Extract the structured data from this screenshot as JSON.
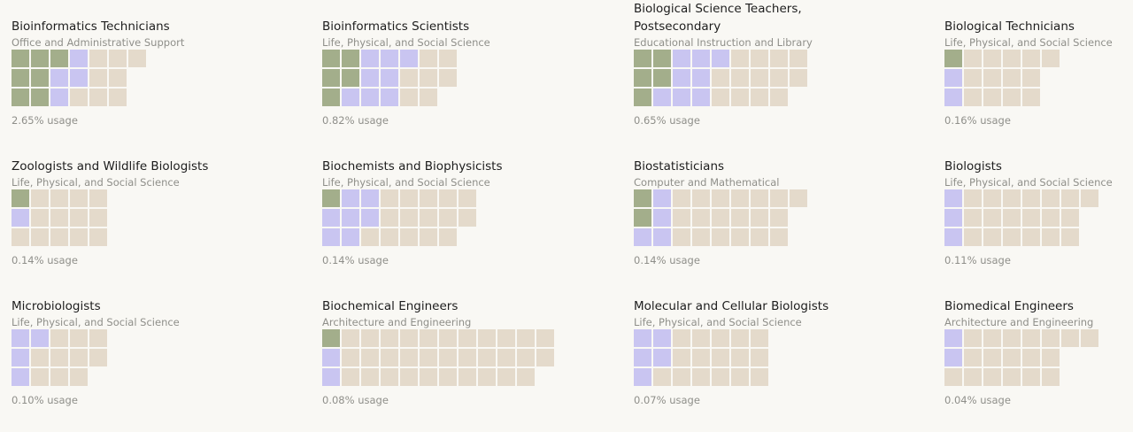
{
  "chart_data": {
    "type": "waffle",
    "legend_colors": {
      "category_1": "#a3ae8b",
      "category_2": "#c9c5f1",
      "category_3": "#e4dacb"
    },
    "occupations": [
      {
        "title": "Bioinformatics Technicians",
        "subtitle": "Office and Administrative Support",
        "usage_label": "2.65% usage",
        "usage_percent": 2.65,
        "rows": [
          [
            1,
            1,
            1,
            2,
            3,
            3,
            3
          ],
          [
            1,
            1,
            2,
            2,
            3,
            3
          ],
          [
            1,
            1,
            2,
            3,
            3,
            3
          ]
        ]
      },
      {
        "title": "Bioinformatics Scientists",
        "subtitle": "Life, Physical, and Social Science",
        "usage_label": "0.82% usage",
        "usage_percent": 0.82,
        "rows": [
          [
            1,
            1,
            2,
            2,
            2,
            3,
            3
          ],
          [
            1,
            1,
            2,
            2,
            3,
            3,
            3
          ],
          [
            1,
            2,
            2,
            2,
            3,
            3
          ]
        ]
      },
      {
        "title": "Biological Science Teachers, Postsecondary",
        "subtitle": "Educational Instruction and Library",
        "usage_label": "0.65% usage",
        "usage_percent": 0.65,
        "rows": [
          [
            1,
            1,
            2,
            2,
            2,
            3,
            3,
            3,
            3
          ],
          [
            1,
            1,
            2,
            2,
            3,
            3,
            3,
            3,
            3
          ],
          [
            1,
            2,
            2,
            2,
            3,
            3,
            3,
            3
          ]
        ]
      },
      {
        "title": "Biological Technicians",
        "subtitle": "Life, Physical, and Social Science",
        "usage_label": "0.16% usage",
        "usage_percent": 0.16,
        "rows": [
          [
            1,
            3,
            3,
            3,
            3,
            3
          ],
          [
            2,
            3,
            3,
            3,
            3
          ],
          [
            2,
            3,
            3,
            3,
            3
          ]
        ]
      },
      {
        "title": "Zoologists and Wildlife Biologists",
        "subtitle": "Life, Physical, and Social Science",
        "usage_label": "0.14% usage",
        "usage_percent": 0.14,
        "rows": [
          [
            1,
            3,
            3,
            3,
            3
          ],
          [
            2,
            3,
            3,
            3,
            3
          ],
          [
            3,
            3,
            3,
            3,
            3
          ]
        ]
      },
      {
        "title": "Biochemists and Biophysicists",
        "subtitle": "Life, Physical, and Social Science",
        "usage_label": "0.14% usage",
        "usage_percent": 0.14,
        "rows": [
          [
            1,
            2,
            2,
            3,
            3,
            3,
            3,
            3
          ],
          [
            2,
            2,
            2,
            3,
            3,
            3,
            3,
            3
          ],
          [
            2,
            2,
            3,
            3,
            3,
            3,
            3
          ]
        ]
      },
      {
        "title": "Biostatisticians",
        "subtitle": "Computer and Mathematical",
        "usage_label": "0.14% usage",
        "usage_percent": 0.14,
        "rows": [
          [
            1,
            2,
            3,
            3,
            3,
            3,
            3,
            3,
            3
          ],
          [
            1,
            2,
            3,
            3,
            3,
            3,
            3,
            3
          ],
          [
            2,
            2,
            3,
            3,
            3,
            3,
            3,
            3
          ]
        ]
      },
      {
        "title": "Biologists",
        "subtitle": "Life, Physical, and Social Science",
        "usage_label": "0.11% usage",
        "usage_percent": 0.11,
        "rows": [
          [
            2,
            3,
            3,
            3,
            3,
            3,
            3,
            3
          ],
          [
            2,
            3,
            3,
            3,
            3,
            3,
            3
          ],
          [
            2,
            3,
            3,
            3,
            3,
            3,
            3
          ]
        ]
      },
      {
        "title": "Microbiologists",
        "subtitle": "Life, Physical, and Social Science",
        "usage_label": "0.10% usage",
        "usage_percent": 0.1,
        "rows": [
          [
            2,
            2,
            3,
            3,
            3
          ],
          [
            2,
            3,
            3,
            3,
            3
          ],
          [
            2,
            3,
            3,
            3
          ]
        ]
      },
      {
        "title": "Biochemical Engineers",
        "subtitle": "Architecture and Engineering",
        "usage_label": "0.08% usage",
        "usage_percent": 0.08,
        "rows": [
          [
            1,
            3,
            3,
            3,
            3,
            3,
            3,
            3,
            3,
            3,
            3,
            3
          ],
          [
            2,
            3,
            3,
            3,
            3,
            3,
            3,
            3,
            3,
            3,
            3,
            3
          ],
          [
            2,
            3,
            3,
            3,
            3,
            3,
            3,
            3,
            3,
            3,
            3
          ]
        ]
      },
      {
        "title": "Molecular and Cellular Biologists",
        "subtitle": "Life, Physical, and Social Science",
        "usage_label": "0.07% usage",
        "usage_percent": 0.07,
        "rows": [
          [
            2,
            2,
            3,
            3,
            3,
            3,
            3
          ],
          [
            2,
            2,
            3,
            3,
            3,
            3,
            3
          ],
          [
            2,
            3,
            3,
            3,
            3,
            3,
            3
          ]
        ]
      },
      {
        "title": "Biomedical Engineers",
        "subtitle": "Architecture and Engineering",
        "usage_label": "0.04% usage",
        "usage_percent": 0.04,
        "rows": [
          [
            2,
            3,
            3,
            3,
            3,
            3,
            3,
            3
          ],
          [
            2,
            3,
            3,
            3,
            3,
            3
          ],
          [
            3,
            3,
            3,
            3,
            3,
            3
          ]
        ]
      }
    ]
  }
}
